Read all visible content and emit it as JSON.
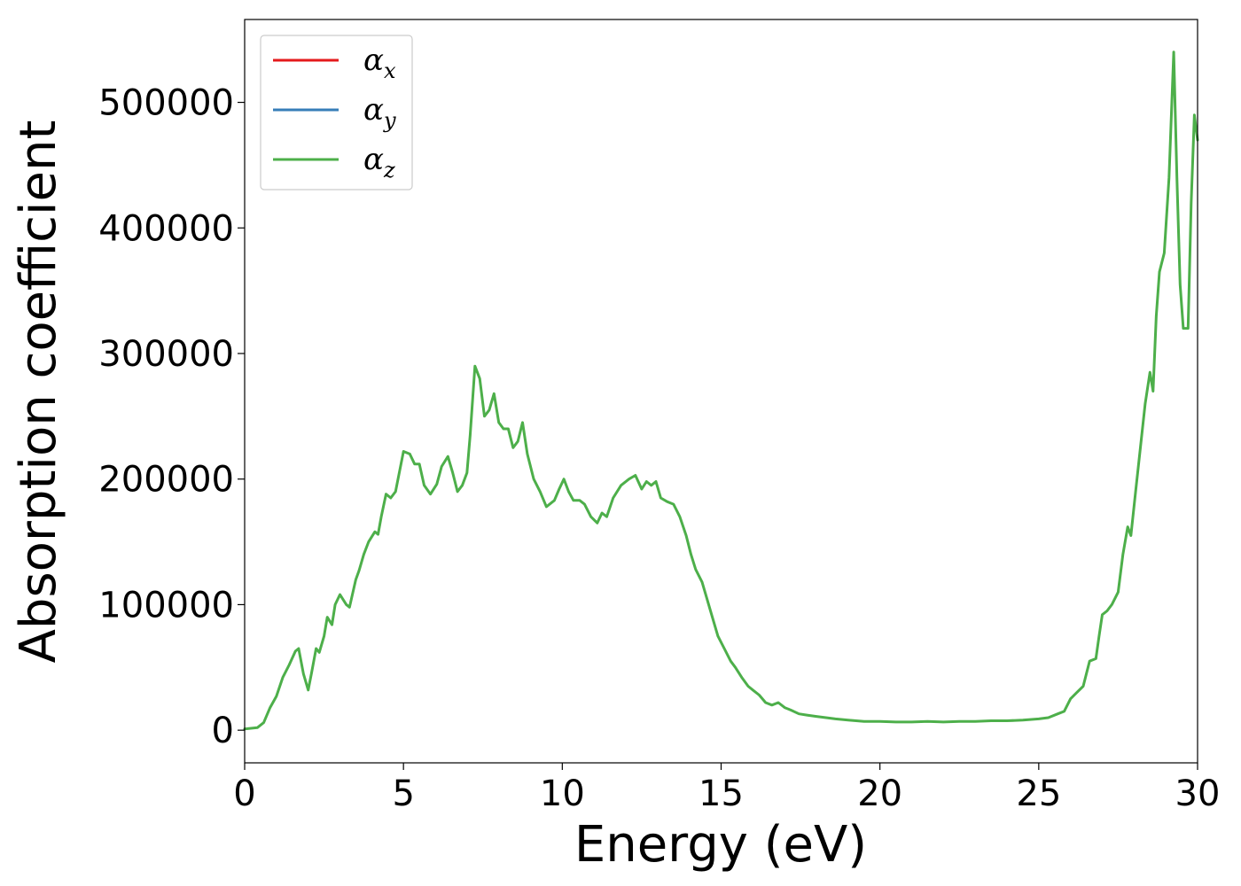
{
  "chart_data": {
    "type": "line",
    "xlabel": "Energy (eV)",
    "ylabel": "Absorption coefficient",
    "xlim": [
      0,
      30
    ],
    "ylim": [
      -26000,
      566000
    ],
    "xticks": [
      0,
      5,
      10,
      15,
      20,
      25,
      30
    ],
    "xtick_labels": [
      "0",
      "5",
      "10",
      "15",
      "20",
      "25",
      "30"
    ],
    "yticks": [
      0,
      100000,
      200000,
      300000,
      400000,
      500000
    ],
    "ytick_labels": [
      "0",
      "100000",
      "200000",
      "300000",
      "400000",
      "500000"
    ],
    "grid": false,
    "legend_position": "top-left",
    "legend": [
      {
        "base": "α",
        "sub": "x",
        "color": "#e41a1c"
      },
      {
        "base": "α",
        "sub": "y",
        "color": "#377eb8"
      },
      {
        "base": "α",
        "sub": "z",
        "color": "#4daf4a"
      }
    ],
    "x": [
      0,
      0.4,
      0.6,
      0.8,
      1.0,
      1.2,
      1.4,
      1.6,
      1.7,
      1.85,
      2.0,
      2.1,
      2.25,
      2.35,
      2.5,
      2.6,
      2.75,
      2.85,
      3.0,
      3.2,
      3.3,
      3.5,
      3.6,
      3.75,
      3.9,
      4.1,
      4.2,
      4.3,
      4.45,
      4.6,
      4.75,
      5.0,
      5.2,
      5.35,
      5.5,
      5.65,
      5.85,
      6.05,
      6.2,
      6.4,
      6.55,
      6.7,
      6.85,
      7.0,
      7.1,
      7.25,
      7.4,
      7.55,
      7.7,
      7.85,
      8.0,
      8.15,
      8.3,
      8.45,
      8.6,
      8.75,
      8.9,
      9.1,
      9.3,
      9.5,
      9.75,
      9.9,
      10.05,
      10.2,
      10.35,
      10.55,
      10.7,
      10.9,
      11.1,
      11.25,
      11.4,
      11.6,
      11.85,
      12.1,
      12.3,
      12.5,
      12.65,
      12.8,
      12.95,
      13.1,
      13.3,
      13.5,
      13.7,
      13.9,
      14.05,
      14.2,
      14.4,
      14.55,
      14.7,
      14.9,
      15.1,
      15.3,
      15.45,
      15.65,
      15.85,
      16.0,
      16.2,
      16.4,
      16.6,
      16.8,
      17.0,
      17.2,
      17.45,
      17.7,
      18.0,
      18.3,
      18.6,
      19.0,
      19.5,
      20.0,
      20.5,
      21.0,
      21.5,
      22.0,
      22.5,
      23.0,
      23.5,
      24.0,
      24.5,
      25.0,
      25.3,
      25.6,
      25.8,
      26.0,
      26.2,
      26.4,
      26.6,
      26.8,
      26.9,
      27.0,
      27.15,
      27.3,
      27.5,
      27.65,
      27.8,
      27.9,
      28.05,
      28.2,
      28.35,
      28.5,
      28.6,
      28.7,
      28.8,
      28.95,
      29.1,
      29.25,
      29.35,
      29.45,
      29.55,
      29.7,
      29.8,
      29.9,
      30.0
    ],
    "series": [
      {
        "color": "#4daf4a",
        "values": [
          1000,
          2000,
          6000,
          18000,
          27000,
          42000,
          52000,
          63000,
          65000,
          45000,
          32000,
          45000,
          65000,
          62000,
          75000,
          90000,
          84000,
          100000,
          108000,
          100000,
          98000,
          120000,
          127000,
          140000,
          150000,
          158000,
          156000,
          170000,
          188000,
          185000,
          190000,
          222000,
          220000,
          212000,
          212000,
          195000,
          188000,
          196000,
          210000,
          218000,
          205000,
          190000,
          195000,
          205000,
          235000,
          290000,
          280000,
          250000,
          255000,
          268000,
          245000,
          240000,
          240000,
          225000,
          230000,
          245000,
          220000,
          200000,
          190000,
          178000,
          183000,
          192000,
          200000,
          190000,
          183000,
          183000,
          180000,
          170000,
          165000,
          173000,
          170000,
          185000,
          195000,
          200000,
          203000,
          192000,
          198000,
          195000,
          198000,
          185000,
          182000,
          180000,
          170000,
          155000,
          140000,
          128000,
          118000,
          105000,
          92000,
          75000,
          65000,
          55000,
          50000,
          42000,
          35000,
          32000,
          28000,
          22000,
          20000,
          22000,
          18000,
          16000,
          13000,
          12000,
          11000,
          10000,
          9000,
          8000,
          7000,
          7000,
          6500,
          6500,
          7000,
          6500,
          7000,
          7000,
          7500,
          7500,
          8000,
          9000,
          10000,
          13000,
          15000,
          25000,
          30000,
          35000,
          55000,
          57000,
          75000,
          92000,
          95000,
          100000,
          110000,
          140000,
          162000,
          155000,
          190000,
          225000,
          260000,
          285000,
          270000,
          330000,
          365000,
          380000,
          440000,
          540000,
          440000,
          355000,
          320000,
          320000,
          420000,
          490000,
          470000
        ]
      }
    ]
  }
}
